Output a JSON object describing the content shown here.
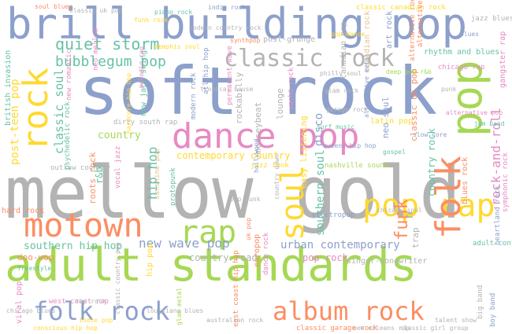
{
  "palette": {
    "blue": "#8da0cb",
    "green": "#a6d854",
    "yellow": "#ffd92f",
    "pink": "#e78ac3",
    "orange": "#fc8d62",
    "teal": "#66c2a5",
    "grey": "#b3b3b3",
    "tan": "#e5c494"
  },
  "words": [
    {
      "text": "mellow gold",
      "color": "grey"
    },
    {
      "text": "soft rock",
      "color": "blue"
    },
    {
      "text": "adult standards",
      "color": "green"
    },
    {
      "text": "brill building pop",
      "color": "blue"
    },
    {
      "text": "dance pop",
      "color": "pink"
    },
    {
      "text": "motown",
      "color": "orange"
    },
    {
      "text": "rock",
      "color": "yellow"
    },
    {
      "text": "pop",
      "color": "green"
    },
    {
      "text": "soul",
      "color": "yellow"
    },
    {
      "text": "pop rap",
      "color": "yellow"
    },
    {
      "text": "classic rock",
      "color": "grey"
    },
    {
      "text": "folk",
      "color": "orange"
    },
    {
      "text": "rap",
      "color": "green"
    },
    {
      "text": "folk rock",
      "color": "blue"
    },
    {
      "text": "album rock",
      "color": "orange"
    },
    {
      "text": "quiet storm",
      "color": "teal"
    },
    {
      "text": "bubblegum pop",
      "color": "teal"
    },
    {
      "text": "funk",
      "color": "orange"
    },
    {
      "text": "new wave pop",
      "color": "blue"
    },
    {
      "text": "urban contemporary",
      "color": "blue"
    },
    {
      "text": "southern hip hop",
      "color": "teal"
    },
    {
      "text": "rock-and-roll",
      "color": "pink"
    },
    {
      "text": "canadian pop",
      "color": "grey"
    },
    {
      "text": "classic soul",
      "color": "teal"
    },
    {
      "text": "post-teen pop",
      "color": "yellow"
    },
    {
      "text": "contemporary country",
      "color": "yellow"
    },
    {
      "text": "hip hop",
      "color": "teal"
    },
    {
      "text": "country",
      "color": "green"
    },
    {
      "text": "country rock",
      "color": "teal"
    },
    {
      "text": "southern soul",
      "color": "teal"
    },
    {
      "text": "pop rock",
      "color": "pink"
    },
    {
      "text": "country road",
      "color": "grey"
    },
    {
      "text": "hard rock",
      "color": "orange"
    },
    {
      "text": "doo-wop",
      "color": "orange"
    },
    {
      "text": "roots rock",
      "color": "orange"
    },
    {
      "text": "disco",
      "color": "blue"
    },
    {
      "text": "lounge",
      "color": "grey"
    },
    {
      "text": "rockabilly",
      "color": "grey"
    },
    {
      "text": "merseybeat",
      "color": "grey"
    },
    {
      "text": "easy listening",
      "color": "yellow"
    },
    {
      "text": "classic uk pop",
      "color": "orange"
    },
    {
      "text": "canadian rock",
      "color": "tan"
    },
    {
      "text": "art rock",
      "color": "blue"
    },
    {
      "text": "rhythm and blues",
      "color": "teal"
    },
    {
      "text": "gangster rap",
      "color": "pink"
    },
    {
      "text": "new jack swing",
      "color": "teal"
    },
    {
      "text": "dirty south rap",
      "color": "grey"
    },
    {
      "text": "jazz funk",
      "color": "yellow"
    },
    {
      "text": "nashville sound",
      "color": "green"
    },
    {
      "text": "singer-songwriter",
      "color": "grey"
    },
    {
      "text": "trap",
      "color": "grey"
    },
    {
      "text": "british invasion",
      "color": "teal"
    },
    {
      "text": "blues rock",
      "color": "orange"
    },
    {
      "text": "hip pop",
      "color": "yellow"
    },
    {
      "text": "post-grunge",
      "color": "grey"
    },
    {
      "text": "synthpop",
      "color": "orange"
    },
    {
      "text": "piano rock",
      "color": "teal"
    },
    {
      "text": "neo soul",
      "color": "blue"
    },
    {
      "text": "latin pop",
      "color": "yellow"
    },
    {
      "text": "alternative rock",
      "color": "orange"
    },
    {
      "text": "jazz blues",
      "color": "grey"
    },
    {
      "text": "modern rock",
      "color": "blue"
    },
    {
      "text": "r&b",
      "color": "teal"
    },
    {
      "text": "electropop",
      "color": "blue"
    },
    {
      "text": "outlaw country",
      "color": "grey"
    },
    {
      "text": "soul blues",
      "color": "orange"
    },
    {
      "text": "chicago soul",
      "color": "grey"
    },
    {
      "text": "permanent wave",
      "color": "pink"
    },
    {
      "text": "memphis soul",
      "color": "yellow"
    },
    {
      "text": "new romantic",
      "color": "pink"
    },
    {
      "text": "uk pop",
      "color": "orange"
    },
    {
      "text": "europop",
      "color": "orange"
    },
    {
      "text": "dance rock",
      "color": "pink"
    },
    {
      "text": "yacht rock",
      "color": "pink"
    },
    {
      "text": "pop punk",
      "color": "grey"
    },
    {
      "text": "alternative metal",
      "color": "blue"
    },
    {
      "text": "boy band",
      "color": "blue"
    },
    {
      "text": "hardcore hip hop",
      "color": "yellow"
    },
    {
      "text": "melodic rap",
      "color": "pink"
    },
    {
      "text": "glam rock",
      "color": "grey"
    },
    {
      "text": "west coast rap",
      "color": "pink"
    },
    {
      "text": "classic canadian rock",
      "color": "yellow"
    },
    {
      "text": "psychedelic rock",
      "color": "teal"
    },
    {
      "text": "classic country pop",
      "color": "grey"
    },
    {
      "text": "vocal jazz",
      "color": "pink"
    },
    {
      "text": "atl hip hop",
      "color": "blue"
    },
    {
      "text": "east coast hip hop",
      "color": "orange"
    },
    {
      "text": "chicago rap",
      "color": "pink"
    },
    {
      "text": "surf music",
      "color": "teal"
    },
    {
      "text": "classic garage rock",
      "color": "orange"
    },
    {
      "text": "new orleans rap",
      "color": "grey"
    },
    {
      "text": "classic girl group",
      "color": "grey"
    },
    {
      "text": "conscious hip hop",
      "color": "yellow"
    },
    {
      "text": "freestyle",
      "color": "teal"
    },
    {
      "text": "indie rock",
      "color": "blue"
    },
    {
      "text": "glam metal",
      "color": "green"
    },
    {
      "text": "viral pop",
      "color": "pink"
    },
    {
      "text": "sunshine pop",
      "color": "tan"
    },
    {
      "text": "protopunk",
      "color": "teal"
    },
    {
      "text": "tropical house",
      "color": "grey"
    },
    {
      "text": "heartland rock",
      "color": "blue"
    },
    {
      "text": "symphonic rock",
      "color": "pink"
    },
    {
      "text": "alternative dance",
      "color": "orange"
    },
    {
      "text": "gospel",
      "color": "teal"
    },
    {
      "text": "adult contemporary",
      "color": "teal"
    },
    {
      "text": "big band",
      "color": "grey"
    },
    {
      "text": "country dawn",
      "color": "grey"
    },
    {
      "text": "rap rock",
      "color": "grey"
    },
    {
      "text": "neo mellow",
      "color": "pink"
    },
    {
      "text": "hollywood",
      "color": "blue"
    },
    {
      "text": "queens hip hop",
      "color": "blue"
    },
    {
      "text": "blues",
      "color": "blue"
    },
    {
      "text": "punk",
      "color": "grey"
    },
    {
      "text": "garage rock",
      "color": "grey"
    },
    {
      "text": "deep pop r&b",
      "color": "green"
    },
    {
      "text": "slow core",
      "color": "blue"
    },
    {
      "text": "philly soul",
      "color": "grey"
    },
    {
      "text": "jam band",
      "color": "teal"
    },
    {
      "text": "classic uk pop",
      "color": "grey"
    },
    {
      "text": "funk rock",
      "color": "yellow"
    },
    {
      "text": "modern country rock",
      "color": "grey"
    },
    {
      "text": "pop dance",
      "color": "yellow"
    },
    {
      "text": "alternative pop",
      "color": "pink"
    },
    {
      "text": "talent show",
      "color": "grey"
    },
    {
      "text": "australian rock",
      "color": "grey"
    },
    {
      "text": "indie pop",
      "color": "yellow"
    },
    {
      "text": "chicago blues",
      "color": "grey"
    },
    {
      "text": "louisiana blues",
      "color": "grey"
    }
  ]
}
